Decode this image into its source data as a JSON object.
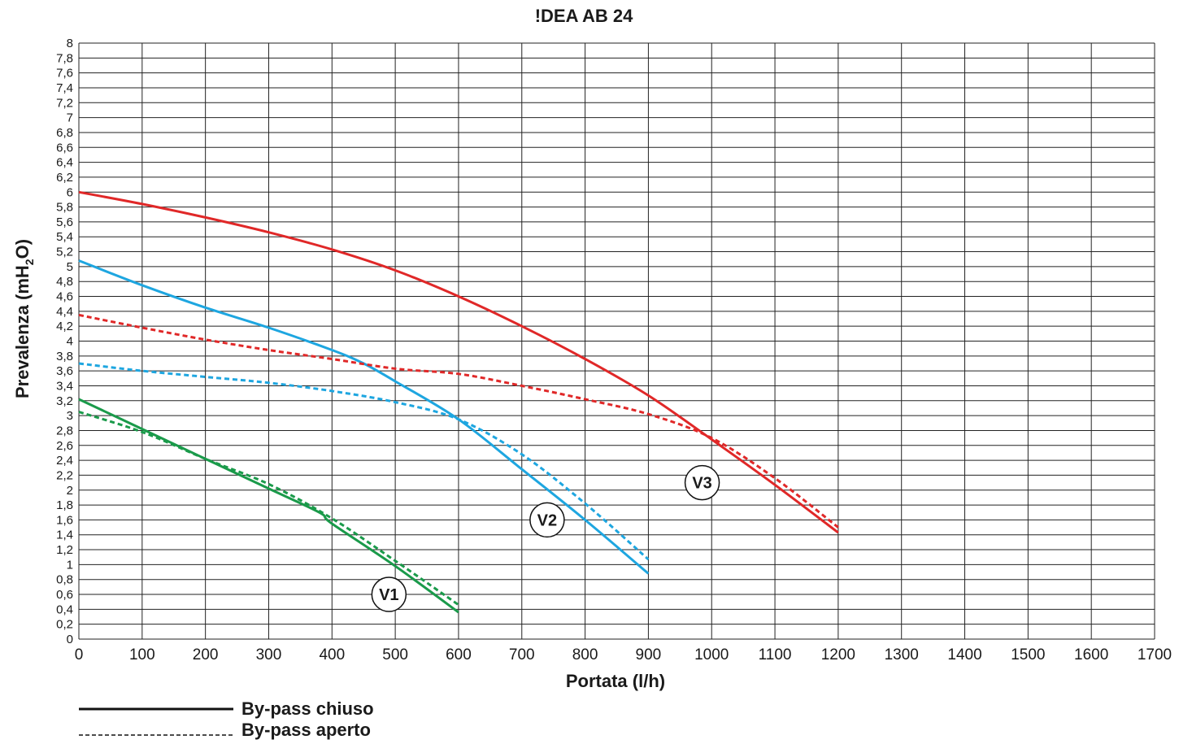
{
  "chart_data": {
    "type": "line",
    "title": "!DEA AB 24",
    "xlabel": "Portata (l/h)",
    "ylabel": {
      "prefix": "Prevalenza (mH",
      "subscript": "2",
      "suffix": "O)"
    },
    "xlim": [
      0,
      1700
    ],
    "ylim": [
      0,
      8
    ],
    "x_ticks": [
      "0",
      "100",
      "200",
      "300",
      "400",
      "500",
      "600",
      "700",
      "800",
      "900",
      "1000",
      "1100",
      "1200",
      "1300",
      "1400",
      "1500",
      "1600",
      "1700"
    ],
    "y_ticks": [
      "0",
      "0,2",
      "0,4",
      "0,6",
      "0,8",
      "1",
      "1,2",
      "1,4",
      "1,6",
      "1,8",
      "2",
      "2,2",
      "2,4",
      "2,6",
      "2,8",
      "3",
      "3,2",
      "3,4",
      "3,6",
      "3,8",
      "4",
      "4,2",
      "4,4",
      "4,6",
      "4,8",
      "5",
      "5,2",
      "5,4",
      "5,6",
      "5,8",
      "6",
      "6,2",
      "6,4",
      "6,6",
      "6,8",
      "7",
      "7,2",
      "7,4",
      "7,6",
      "7,8",
      "8"
    ],
    "grid": true,
    "legend": [
      {
        "label": "By-pass chiuso",
        "style": "solid"
      },
      {
        "label": "By-pass aperto",
        "style": "dashed"
      }
    ],
    "series": [
      {
        "speed": "V1",
        "style": "solid",
        "color": "#1a9a4a",
        "points": [
          [
            0,
            3.22
          ],
          [
            100,
            2.82
          ],
          [
            200,
            2.42
          ],
          [
            300,
            2.02
          ],
          [
            380,
            1.7
          ],
          [
            400,
            1.55
          ],
          [
            500,
            0.98
          ],
          [
            600,
            0.36
          ]
        ]
      },
      {
        "speed": "V1",
        "style": "dashed",
        "color": "#1a9a4a",
        "points": [
          [
            0,
            3.05
          ],
          [
            100,
            2.78
          ],
          [
            200,
            2.42
          ],
          [
            300,
            2.08
          ],
          [
            400,
            1.62
          ],
          [
            500,
            1.05
          ],
          [
            600,
            0.46
          ]
        ]
      },
      {
        "speed": "V2",
        "style": "solid",
        "color": "#1ea6e0",
        "points": [
          [
            0,
            5.08
          ],
          [
            100,
            4.75
          ],
          [
            200,
            4.45
          ],
          [
            300,
            4.18
          ],
          [
            400,
            3.88
          ],
          [
            450,
            3.7
          ],
          [
            500,
            3.46
          ],
          [
            600,
            2.95
          ],
          [
            700,
            2.28
          ],
          [
            800,
            1.6
          ],
          [
            900,
            0.88
          ]
        ]
      },
      {
        "speed": "V2",
        "style": "dashed",
        "color": "#1ea6e0",
        "points": [
          [
            0,
            3.7
          ],
          [
            100,
            3.6
          ],
          [
            200,
            3.52
          ],
          [
            300,
            3.44
          ],
          [
            400,
            3.33
          ],
          [
            500,
            3.18
          ],
          [
            600,
            2.95
          ],
          [
            700,
            2.48
          ],
          [
            800,
            1.82
          ],
          [
            900,
            1.07
          ]
        ]
      },
      {
        "speed": "V3",
        "style": "solid",
        "color": "#e02828",
        "points": [
          [
            0,
            6.0
          ],
          [
            100,
            5.84
          ],
          [
            200,
            5.66
          ],
          [
            300,
            5.46
          ],
          [
            400,
            5.23
          ],
          [
            500,
            4.95
          ],
          [
            600,
            4.6
          ],
          [
            700,
            4.2
          ],
          [
            800,
            3.76
          ],
          [
            900,
            3.27
          ],
          [
            1000,
            2.68
          ],
          [
            1100,
            2.07
          ],
          [
            1200,
            1.43
          ]
        ]
      },
      {
        "speed": "V3",
        "style": "dashed",
        "color": "#e02828",
        "points": [
          [
            0,
            4.35
          ],
          [
            100,
            4.18
          ],
          [
            200,
            4.02
          ],
          [
            300,
            3.88
          ],
          [
            400,
            3.76
          ],
          [
            500,
            3.63
          ],
          [
            600,
            3.56
          ],
          [
            700,
            3.4
          ],
          [
            800,
            3.22
          ],
          [
            900,
            3.02
          ],
          [
            1000,
            2.7
          ],
          [
            1100,
            2.16
          ],
          [
            1200,
            1.5
          ]
        ]
      }
    ],
    "curve_labels": [
      {
        "text": "V1",
        "x": 490,
        "y": 0.6
      },
      {
        "text": "V2",
        "x": 740,
        "y": 1.6
      },
      {
        "text": "V3",
        "x": 985,
        "y": 2.1
      }
    ]
  }
}
